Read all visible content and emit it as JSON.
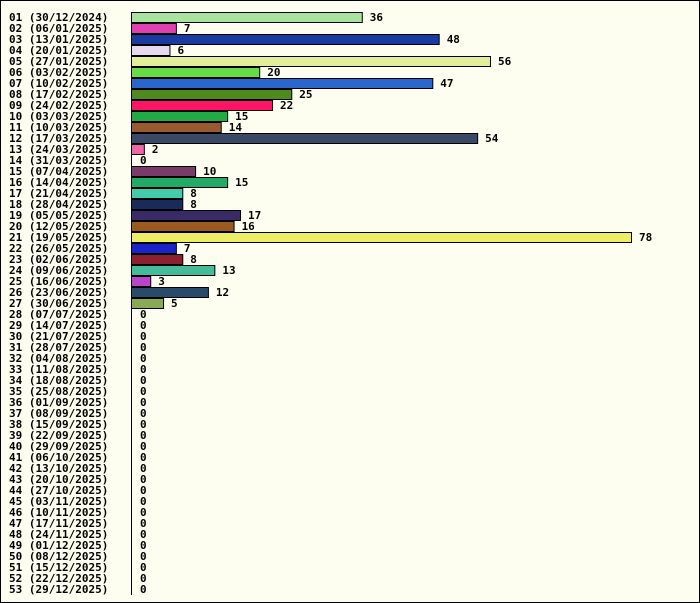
{
  "chart_data": {
    "type": "bar",
    "orientation": "horizontal",
    "categories": [
      "01 (30/12/2024)",
      "02 (06/01/2025)",
      "03 (13/01/2025)",
      "04 (20/01/2025)",
      "05 (27/01/2025)",
      "06 (03/02/2025)",
      "07 (10/02/2025)",
      "08 (17/02/2025)",
      "09 (24/02/2025)",
      "10 (03/03/2025)",
      "11 (10/03/2025)",
      "12 (17/03/2025)",
      "13 (24/03/2025)",
      "14 (31/03/2025)",
      "15 (07/04/2025)",
      "16 (14/04/2025)",
      "17 (21/04/2025)",
      "18 (28/04/2025)",
      "19 (05/05/2025)",
      "20 (12/05/2025)",
      "21 (19/05/2025)",
      "22 (26/05/2025)",
      "23 (02/06/2025)",
      "24 (09/06/2025)",
      "25 (16/06/2025)",
      "26 (23/06/2025)",
      "27 (30/06/2025)",
      "28 (07/07/2025)",
      "29 (14/07/2025)",
      "30 (21/07/2025)",
      "31 (28/07/2025)",
      "32 (04/08/2025)",
      "33 (11/08/2025)",
      "34 (18/08/2025)",
      "35 (25/08/2025)",
      "36 (01/09/2025)",
      "37 (08/09/2025)",
      "38 (15/09/2025)",
      "39 (22/09/2025)",
      "40 (29/09/2025)",
      "41 (06/10/2025)",
      "42 (13/10/2025)",
      "43 (20/10/2025)",
      "44 (27/10/2025)",
      "45 (03/11/2025)",
      "46 (10/11/2025)",
      "47 (17/11/2025)",
      "48 (24/11/2025)",
      "49 (01/12/2025)",
      "50 (08/12/2025)",
      "51 (15/12/2025)",
      "52 (22/12/2025)",
      "53 (29/12/2025)"
    ],
    "values": [
      36,
      7,
      48,
      6,
      56,
      20,
      47,
      25,
      22,
      15,
      14,
      54,
      2,
      0,
      10,
      15,
      8,
      8,
      17,
      16,
      78,
      7,
      8,
      13,
      3,
      12,
      5,
      0,
      0,
      0,
      0,
      0,
      0,
      0,
      0,
      0,
      0,
      0,
      0,
      0,
      0,
      0,
      0,
      0,
      0,
      0,
      0,
      0,
      0,
      0,
      0,
      0,
      0
    ],
    "colors": [
      "#a8e4a0",
      "#e040b0",
      "#1a3aa0",
      "#e6d8ee",
      "#e2ee9a",
      "#66dd44",
      "#2a66cc",
      "#4e8a1e",
      "#ff1466",
      "#22aa44",
      "#9a5a30",
      "#3a4a66",
      "#ee66aa",
      "#ffffff",
      "#7a3a6a",
      "#22aa66",
      "#44ccaa",
      "#1a2a5a",
      "#3a2a66",
      "#9a5a20",
      "#eeee66",
      "#1a22cc",
      "#8a2030",
      "#44bb99",
      "#bb44cc",
      "#2a4a6a",
      "#88aa55",
      "#ffffff",
      "#ffffff",
      "#ffffff",
      "#ffffff",
      "#ffffff",
      "#ffffff",
      "#ffffff",
      "#ffffff",
      "#ffffff",
      "#ffffff",
      "#ffffff",
      "#ffffff",
      "#ffffff",
      "#ffffff",
      "#ffffff",
      "#ffffff",
      "#ffffff",
      "#ffffff",
      "#ffffff",
      "#ffffff",
      "#ffffff",
      "#ffffff",
      "#ffffff",
      "#ffffff",
      "#ffffff",
      "#ffffff"
    ],
    "xlim": [
      0,
      78
    ],
    "title": "",
    "xlabel": "",
    "ylabel": "",
    "grid": false,
    "legend": "none"
  }
}
